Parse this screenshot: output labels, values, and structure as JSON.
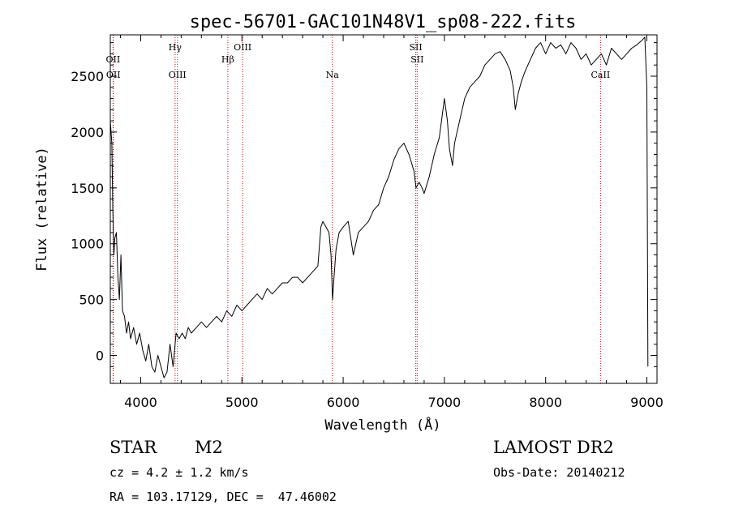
{
  "chart_data": {
    "type": "line",
    "title": "spec-56701-GAC101N48V1_sp08-222.fits",
    "xlabel": "Wavelength (Å)",
    "ylabel": "Flux (relative)",
    "xlim": [
      3700,
      9100
    ],
    "ylim": [
      -250,
      2870
    ],
    "xticks": [
      4000,
      5000,
      6000,
      7000,
      8000,
      9000
    ],
    "yticks": [
      0,
      500,
      1000,
      1500,
      2000,
      2500
    ],
    "grid": false,
    "line_color": "#000000",
    "marker_color": "#cc0000",
    "lines": [
      {
        "label": "OII",
        "wavelength": 3727,
        "row": "top"
      },
      {
        "label": "OII",
        "wavelength": 3730,
        "row": "mid"
      },
      {
        "label": "Hγ",
        "wavelength": 4340,
        "row": "hi"
      },
      {
        "label": "OIII",
        "wavelength": 4363,
        "row": "mid"
      },
      {
        "label": "Hβ",
        "wavelength": 4861,
        "row": "top"
      },
      {
        "label": "OIII",
        "wavelength": 5007,
        "row": "hi"
      },
      {
        "label": "Na",
        "wavelength": 5893,
        "row": "mid"
      },
      {
        "label": "SII",
        "wavelength": 6717,
        "row": "hi"
      },
      {
        "label": "SII",
        "wavelength": 6731,
        "row": "top"
      },
      {
        "label": "CaII",
        "wavelength": 8542,
        "row": "mid"
      }
    ],
    "series": [
      {
        "x": [
          3700,
          3715,
          3725,
          3735,
          3745,
          3760,
          3775,
          3790,
          3805,
          3820,
          3840,
          3860,
          3880,
          3900,
          3930,
          3960,
          3990,
          4020,
          4050,
          4080,
          4110,
          4140,
          4170,
          4200,
          4230,
          4260,
          4290,
          4320,
          4350,
          4380,
          4410,
          4440,
          4470,
          4500,
          4550,
          4600,
          4650,
          4700,
          4750,
          4800,
          4850,
          4900,
          4950,
          5000,
          5050,
          5100,
          5150,
          5200,
          5250,
          5300,
          5350,
          5400,
          5450,
          5500,
          5550,
          5600,
          5650,
          5700,
          5750,
          5780,
          5800,
          5830,
          5860,
          5880,
          5895,
          5910,
          5930,
          5960,
          6000,
          6050,
          6100,
          6150,
          6200,
          6250,
          6300,
          6350,
          6400,
          6450,
          6500,
          6550,
          6600,
          6650,
          6700,
          6720,
          6750,
          6780,
          6800,
          6850,
          6900,
          6950,
          7000,
          7030,
          7050,
          7080,
          7100,
          7150,
          7200,
          7250,
          7300,
          7350,
          7400,
          7450,
          7500,
          7550,
          7600,
          7650,
          7680,
          7700,
          7730,
          7760,
          7800,
          7850,
          7900,
          7950,
          8000,
          8050,
          8100,
          8150,
          8200,
          8250,
          8300,
          8350,
          8400,
          8450,
          8500,
          8550,
          8600,
          8650,
          8700,
          8750,
          8800,
          8850,
          8900,
          8950,
          8980,
          9000,
          9010
        ],
        "values": [
          2100,
          1900,
          1300,
          900,
          1050,
          1100,
          700,
          500,
          900,
          400,
          350,
          200,
          300,
          150,
          250,
          100,
          200,
          50,
          -50,
          100,
          -100,
          -150,
          0,
          -100,
          -200,
          -150,
          100,
          -100,
          200,
          150,
          200,
          150,
          250,
          200,
          250,
          300,
          250,
          300,
          350,
          300,
          400,
          350,
          450,
          400,
          450,
          500,
          550,
          500,
          600,
          550,
          600,
          650,
          650,
          700,
          700,
          650,
          700,
          750,
          800,
          1150,
          1200,
          1150,
          1100,
          900,
          500,
          700,
          950,
          1100,
          1150,
          1200,
          900,
          1100,
          1150,
          1200,
          1300,
          1350,
          1500,
          1600,
          1750,
          1850,
          1900,
          1800,
          1650,
          1500,
          1550,
          1500,
          1450,
          1600,
          1800,
          1950,
          2300,
          2100,
          1850,
          1700,
          1900,
          2100,
          2300,
          2400,
          2450,
          2500,
          2600,
          2650,
          2700,
          2720,
          2650,
          2550,
          2400,
          2200,
          2350,
          2450,
          2550,
          2650,
          2750,
          2800,
          2700,
          2800,
          2750,
          2780,
          2700,
          2800,
          2750,
          2650,
          2700,
          2600,
          2650,
          2700,
          2600,
          2750,
          2700,
          2650,
          2700,
          2750,
          2780,
          2820,
          2850,
          2400,
          -100
        ]
      }
    ]
  },
  "info": {
    "object_class": "STAR",
    "subclass": "M2",
    "redshift_line": "cz = 4.2 ± 1.2 km/s",
    "coords_line": "RA = 103.17129, DEC =  47.46002",
    "survey": "LAMOST DR2",
    "obs_date_line": "Obs-Date: 20140212"
  }
}
